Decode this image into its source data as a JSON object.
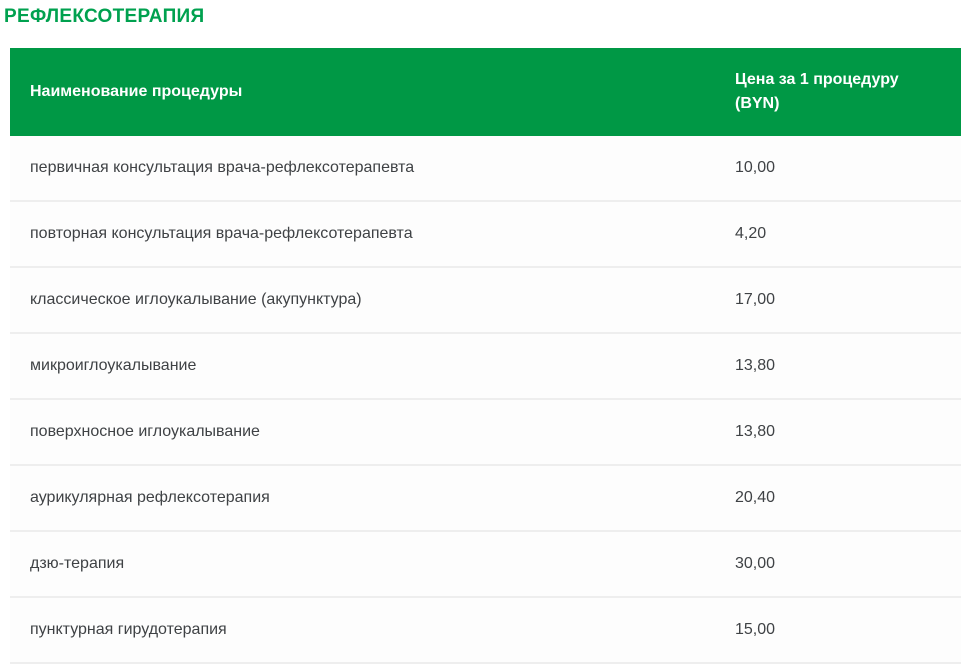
{
  "page": {
    "title": "РЕФЛЕКСОТЕРАПИЯ"
  },
  "table": {
    "columns": [
      {
        "label": "Наименование процедуры"
      },
      {
        "label": "Цена за 1 процедуру (BYN)"
      }
    ],
    "rows": [
      {
        "name": "первичная консультация врача-рефлексотерапевта",
        "price": "10,00"
      },
      {
        "name": "повторная консультация врача-рефлексотерапевта",
        "price": "4,20"
      },
      {
        "name": "классическое иглоукалывание (акупунктура)",
        "price": "17,00"
      },
      {
        "name": "микроиглоукалывание",
        "price": "13,80"
      },
      {
        "name": "поверхносное иглоукалывание",
        "price": "13,80"
      },
      {
        "name": "аурикулярная рефлексотерапия",
        "price": "20,40"
      },
      {
        "name": "дзю-терапия",
        "price": "30,00"
      },
      {
        "name": "пунктурная гирудотерапия",
        "price": "15,00"
      }
    ]
  },
  "colors": {
    "accent": "#009845",
    "title_color": "#00a14f",
    "header_text": "#ffffff",
    "row_text": "#3f4245",
    "divider": "#eeeeee",
    "row_bg": "#fdfdfd"
  }
}
